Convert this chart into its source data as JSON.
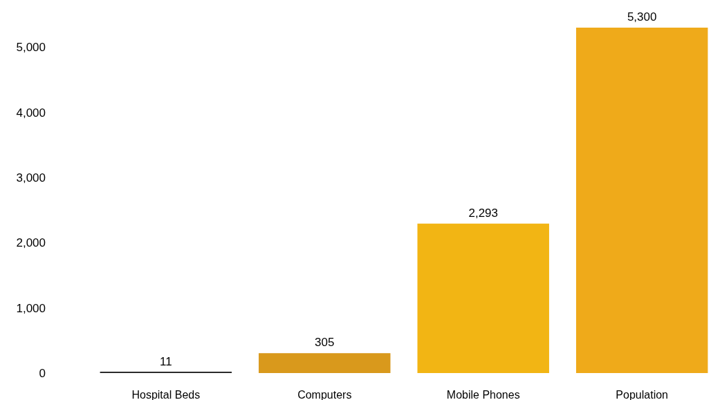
{
  "chart_data": {
    "type": "bar",
    "categories": [
      "Hospital Beds",
      "Computers",
      "Mobile Phones",
      "Population"
    ],
    "values": [
      11,
      305,
      2293,
      5300
    ],
    "colors": [
      "#2a2a2a",
      "#d9991c",
      "#f2b514",
      "#efaa1a"
    ],
    "value_labels": [
      "11",
      "305",
      "2,293",
      "5,300"
    ],
    "ylim": [
      0,
      5300
    ],
    "yticks": [
      0,
      {
        "value": 1000,
        "label": "1,000"
      },
      {
        "value": 2000,
        "label": "2,000"
      },
      {
        "value": 3000,
        "label": "3,000"
      },
      {
        "value": 4000,
        "label": "4,000"
      },
      {
        "value": 5000,
        "label": "5,000"
      }
    ],
    "grid": false
  }
}
